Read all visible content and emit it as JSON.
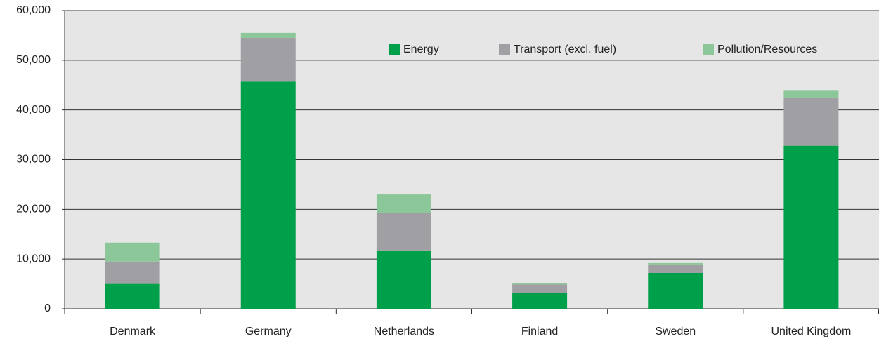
{
  "chart_data": {
    "type": "stacked_bar",
    "categories": [
      "Denmark",
      "Germany",
      "Netherlands",
      "Finland",
      "Sweden",
      "United Kingdom"
    ],
    "series": [
      {
        "name": "Energy",
        "color": "#00a04b",
        "values": [
          5000,
          45700,
          11600,
          3200,
          7200,
          32800
        ]
      },
      {
        "name": "Transport (excl. fuel)",
        "color": "#a0a0a4",
        "values": [
          4500,
          8800,
          7600,
          1700,
          1700,
          9700
        ]
      },
      {
        "name": "Pollution/Resources",
        "color": "#8cc79a",
        "values": [
          3800,
          1000,
          3800,
          300,
          300,
          1500
        ]
      }
    ],
    "ylim": [
      0,
      60000
    ],
    "yticks": [
      0,
      {
        "value": 10000,
        "label": "10,000"
      },
      {
        "value": 20000,
        "label": "20,000"
      },
      {
        "value": 30000,
        "label": "30,000"
      },
      {
        "value": 40000,
        "label": "40,000"
      },
      {
        "value": 50000,
        "label": "50,000"
      },
      {
        "value": 60000,
        "label": "60,000"
      }
    ],
    "grid": true,
    "legend": "top-right"
  }
}
